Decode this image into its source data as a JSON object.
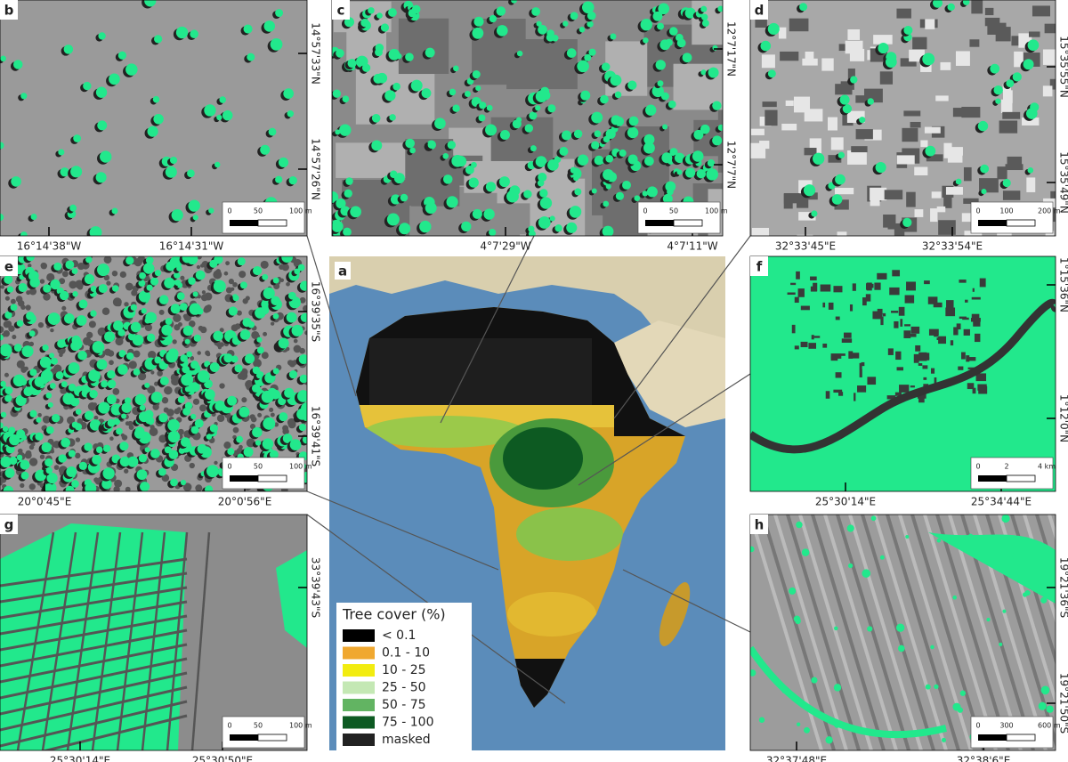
{
  "panels": [
    {
      "letter": "b",
      "x_labels": [
        "16°14'38\"W",
        "16°14'31\"W"
      ],
      "y_labels": [
        "14°57'33\"N",
        "14°57'26\"N"
      ],
      "scale": [
        "0",
        "50",
        "100 m"
      ]
    },
    {
      "letter": "c",
      "x_labels": [
        "4°7'29\"W",
        "4°7'11\"W"
      ],
      "y_labels": [
        "12°7'17\"N",
        "12°7'7\"N"
      ],
      "scale": [
        "0",
        "50",
        "100 m"
      ]
    },
    {
      "letter": "d",
      "x_labels": [
        "32°33'45\"E",
        "32°33'54\"E"
      ],
      "y_labels": [
        "15°35'55\"N",
        "15°35'49\"N"
      ],
      "scale": [
        "0",
        "100",
        "200 m"
      ]
    },
    {
      "letter": "e",
      "x_labels": [
        "20°0'45\"E",
        "20°0'56\"E"
      ],
      "y_labels": [
        "16°39'35\"S",
        "16°39'41\"S"
      ],
      "scale": [
        "0",
        "50",
        "100 m"
      ]
    },
    {
      "letter": "f",
      "x_labels": [
        "25°30'14\"E",
        "25°34'44\"E"
      ],
      "y_labels": [
        "1°15'36\"N",
        "1°12'0\"N"
      ],
      "scale": [
        "0",
        "2",
        "4 km"
      ]
    },
    {
      "letter": "g",
      "x_labels": [
        "25°30'14\"E",
        "25°30'50\"E"
      ],
      "y_labels": [
        "33°39'43\"S"
      ],
      "scale": [
        "0",
        "50",
        "100 m"
      ]
    },
    {
      "letter": "h",
      "x_labels": [
        "32°37'48\"E",
        "32°38'6\"E"
      ],
      "y_labels": [
        "19°21'36\"S",
        "19°21'50\"S"
      ],
      "scale": [
        "0",
        "300",
        "600 m"
      ]
    }
  ],
  "map": {
    "letter": "a",
    "legend": {
      "title": "Tree cover (%)",
      "items": [
        {
          "label": "< 0.1",
          "color": "#000000"
        },
        {
          "label": "0.1 - 10",
          "color": "#f0a830"
        },
        {
          "label": "10 - 25",
          "color": "#f2ec10"
        },
        {
          "label": "25 - 50",
          "color": "#c4e8b4"
        },
        {
          "label": "50 - 75",
          "color": "#62b462"
        },
        {
          "label": "75 - 100",
          "color": "#0d5a22"
        },
        {
          "label": "masked",
          "color": "#222222"
        }
      ]
    }
  }
}
